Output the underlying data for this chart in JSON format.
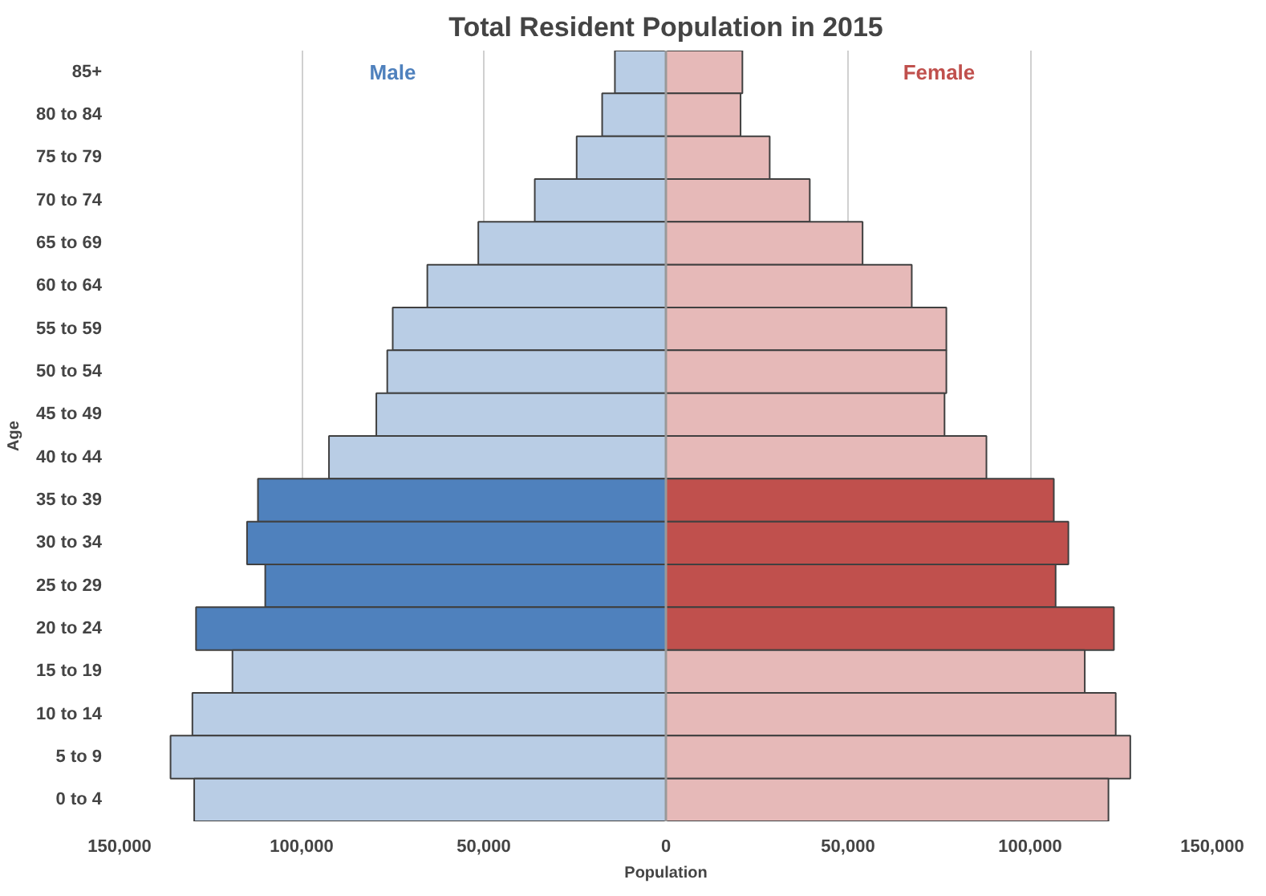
{
  "chart_data": {
    "type": "bar",
    "orientation": "horizontal",
    "title": "Total Resident Population in 2015",
    "xlabel": "Population",
    "ylabel": "Age",
    "categories": [
      "85+",
      "80 to 84",
      "75 to 79",
      "70 to 74",
      "65 to 69",
      "60 to 64",
      "55 to 59",
      "50 to 54",
      "45 to 49",
      "40 to 44",
      "35 to 39",
      "30 to 34",
      "25 to 29",
      "20 to 24",
      "15 to 19",
      "10 to 14",
      "5 to 9",
      "0 to 4"
    ],
    "series": [
      {
        "name": "Male",
        "colors": [
          "#b9cde5",
          "#b9cde5",
          "#b9cde5",
          "#b9cde5",
          "#b9cde5",
          "#b9cde5",
          "#b9cde5",
          "#b9cde5",
          "#b9cde5",
          "#b9cde5",
          "#4f81bd",
          "#4f81bd",
          "#4f81bd",
          "#4f81bd",
          "#b9cde5",
          "#b9cde5",
          "#b9cde5",
          "#b9cde5"
        ],
        "values": [
          -14000,
          -17500,
          -24500,
          -36000,
          -51500,
          -65500,
          -75000,
          -76500,
          -79500,
          -92500,
          -112000,
          -115000,
          -110000,
          -129000,
          -119000,
          -130000,
          -136000,
          -129500
        ]
      },
      {
        "name": "Female",
        "colors": [
          "#e6b9b8",
          "#e6b9b8",
          "#e6b9b8",
          "#e6b9b8",
          "#e6b9b8",
          "#e6b9b8",
          "#e6b9b8",
          "#e6b9b8",
          "#e6b9b8",
          "#e6b9b8",
          "#c0504d",
          "#c0504d",
          "#c0504d",
          "#c0504d",
          "#e6b9b8",
          "#e6b9b8",
          "#e6b9b8",
          "#e6b9b8"
        ],
        "values": [
          21000,
          20500,
          28500,
          39500,
          54000,
          67500,
          77000,
          77000,
          76500,
          88000,
          106500,
          110500,
          107000,
          123000,
          115000,
          123500,
          127500,
          121500
        ]
      }
    ],
    "xlim": [
      -150000,
      150000
    ],
    "xticks": [
      {
        "value": -150000,
        "label": "150,000"
      },
      {
        "value": -100000,
        "label": "100,000"
      },
      {
        "value": -50000,
        "label": "50,000"
      },
      0,
      {
        "value": 50000,
        "label": "50,000"
      },
      {
        "value": 100000,
        "label": "100,000"
      },
      {
        "value": 150000,
        "label": "150,000"
      }
    ],
    "grid": "x",
    "stacked": true
  }
}
